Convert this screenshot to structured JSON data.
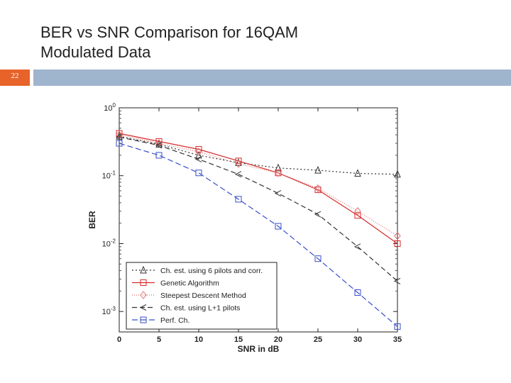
{
  "slide": {
    "title_line1": "BER vs SNR Comparison for 16QAM",
    "title_line2": "Modulated Data",
    "number": "22"
  },
  "chart_data": {
    "type": "line",
    "title": "",
    "xlabel": "SNR in dB",
    "ylabel": "BER",
    "xlim": [
      0,
      35
    ],
    "ylim": [
      0.0005,
      1
    ],
    "yscale": "log",
    "x": [
      0,
      5,
      10,
      15,
      20,
      25,
      30,
      35
    ],
    "x_ticks": [
      "0",
      "5",
      "10",
      "15",
      "20",
      "25",
      "30",
      "35"
    ],
    "y_ticks": [
      {
        "value": 1,
        "base": "10",
        "exp": "0"
      },
      {
        "value": 0.1,
        "base": "10",
        "exp": "-1"
      },
      {
        "value": 0.01,
        "base": "10",
        "exp": "-2"
      },
      {
        "value": 0.001,
        "base": "10",
        "exp": "-3"
      }
    ],
    "grid": false,
    "legend_position": "bottom-left",
    "series": [
      {
        "name": "Ch. est. using 6 pilots and corr.",
        "color": "#333333",
        "dash": "2,3",
        "marker": "triangle-up",
        "values": [
          0.38,
          0.29,
          0.2,
          0.155,
          0.13,
          0.12,
          0.108,
          0.105
        ]
      },
      {
        "name": "Genetic Algorithm",
        "color": "#d42a2a",
        "dash": "",
        "marker": "square",
        "values": [
          0.42,
          0.32,
          0.245,
          0.165,
          0.11,
          0.062,
          0.026,
          0.01
        ]
      },
      {
        "name": "Steepest Descent Method",
        "color": "#e07070",
        "dash": "1,2",
        "marker": "diamond",
        "values": [
          0.4,
          0.3,
          0.225,
          0.15,
          0.11,
          0.065,
          0.03,
          0.013
        ]
      },
      {
        "name": "Ch. est. using L+1 pilots",
        "color": "#333333",
        "dash": "7,4",
        "marker": "triangle-left",
        "values": [
          0.37,
          0.28,
          0.175,
          0.105,
          0.055,
          0.027,
          0.009,
          0.0028
        ]
      },
      {
        "name": "Perf. Ch.",
        "color": "#3a4fc8",
        "dash": "8,4",
        "marker": "square",
        "values": [
          0.3,
          0.2,
          0.11,
          0.045,
          0.018,
          0.006,
          0.0019,
          0.0006
        ]
      }
    ]
  }
}
